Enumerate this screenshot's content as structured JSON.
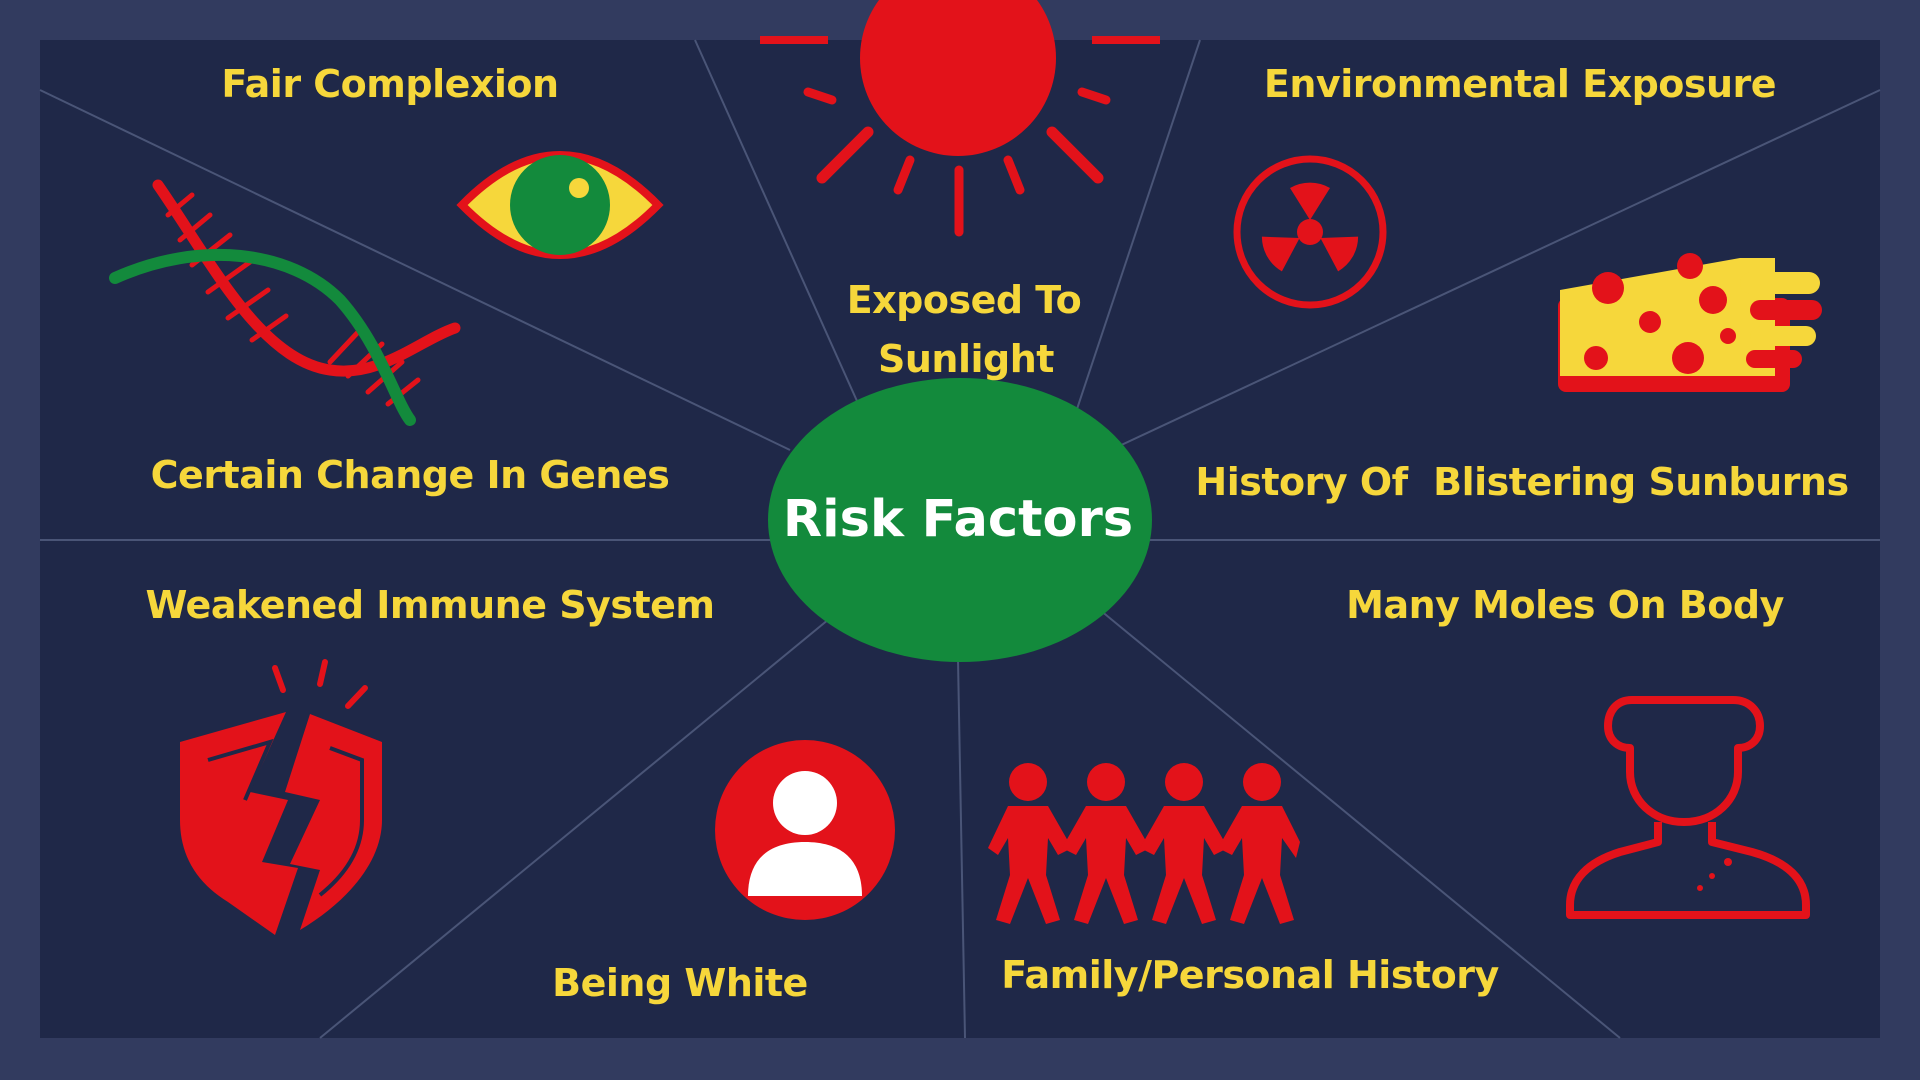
{
  "center": {
    "title": "Risk Factors"
  },
  "factors": {
    "fair_complexion": "Fair Complexion",
    "sunlight_line1": "Exposed To",
    "sunlight_line2": "Sunlight",
    "environmental_exposure": "Environmental Exposure",
    "genes": "Certain Change In Genes",
    "sunburns": "History Of  Blistering Sunburns",
    "immune": "Weakened Immune System",
    "moles": "Many Moles On Body",
    "white": "Being White",
    "family": "Family/Personal History"
  },
  "colors": {
    "outer_frame": "#323b5f",
    "panel": "#1f2848",
    "divider": "#4a5577",
    "label_yellow": "#f6d73b",
    "icon_red": "#e3121a",
    "icon_green": "#138a3c",
    "icon_white": "#ffffff"
  },
  "icons": {
    "sun": "sun-icon",
    "eye": "eye-icon",
    "dna": "dna-icon",
    "radiation": "radiation-icon",
    "sunburn": "sunburned-hand-icon",
    "shield": "broken-shield-icon",
    "person": "person-avatar-icon",
    "family": "paper-people-chain-icon",
    "moles": "person-bust-moles-icon"
  }
}
